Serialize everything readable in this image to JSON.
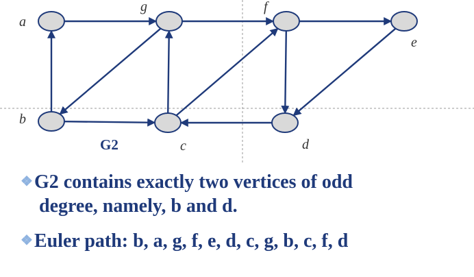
{
  "graph": {
    "title": "G2",
    "vertices": [
      {
        "id": "a",
        "label": "a"
      },
      {
        "id": "g",
        "label": "g"
      },
      {
        "id": "f",
        "label": "f"
      },
      {
        "id": "e",
        "label": "e"
      },
      {
        "id": "b",
        "label": "b"
      },
      {
        "id": "c",
        "label": "c"
      },
      {
        "id": "d",
        "label": "d"
      }
    ],
    "edges": [
      {
        "from": "a",
        "to": "g"
      },
      {
        "from": "g",
        "to": "f"
      },
      {
        "from": "f",
        "to": "e"
      },
      {
        "from": "b",
        "to": "a"
      },
      {
        "from": "g",
        "to": "b"
      },
      {
        "from": "c",
        "to": "g"
      },
      {
        "from": "c",
        "to": "f"
      },
      {
        "from": "f",
        "to": "d"
      },
      {
        "from": "e",
        "to": "d"
      },
      {
        "from": "b",
        "to": "c"
      },
      {
        "from": "d",
        "to": "c"
      }
    ]
  },
  "bullets": [
    {
      "line1": "G2 contains exactly two vertices of odd",
      "line2": "degree, namely, b and d."
    },
    {
      "line1": "Euler path: b, a, g, f, e, d, c, g, b, c, f, d"
    }
  ],
  "colors": {
    "edge": "#1f3a7a",
    "node_fill": "#d9d9d9",
    "text": "#1f3a7a",
    "bullet": "#8fb3e0"
  }
}
